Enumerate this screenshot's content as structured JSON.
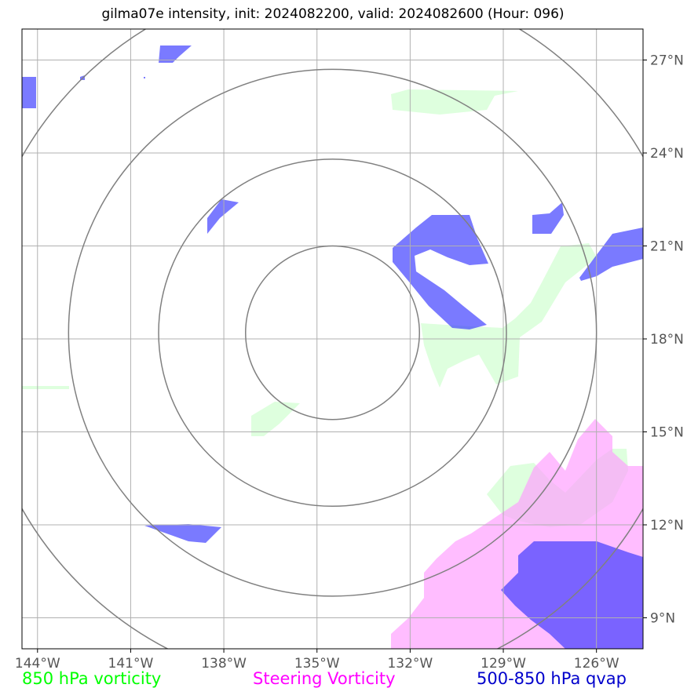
{
  "title": "gilma07e intensity, init: 2024082200, valid: 2024082600 (Hour: 096)",
  "map": {
    "lon_range": [
      -144.5,
      -124.5
    ],
    "lat_range": [
      8,
      28
    ],
    "lon_ticks": [
      {
        "value": -144,
        "label": "144°W"
      },
      {
        "value": -141,
        "label": "141°W"
      },
      {
        "value": -138,
        "label": "138°W"
      },
      {
        "value": -135,
        "label": "135°W"
      },
      {
        "value": -132,
        "label": "132°W"
      },
      {
        "value": -129,
        "label": "129°W"
      },
      {
        "value": -126,
        "label": "126°W"
      }
    ],
    "lat_ticks": [
      {
        "value": 27,
        "label": "27°N"
      },
      {
        "value": 24,
        "label": "24°N"
      },
      {
        "value": 21,
        "label": "21°N"
      },
      {
        "value": 18,
        "label": "18°N"
      },
      {
        "value": 15,
        "label": "15°N"
      },
      {
        "value": 12,
        "label": "12°N"
      },
      {
        "value": 9,
        "label": "9°N"
      }
    ],
    "range_rings": {
      "center": {
        "lon": -134.5,
        "lat": 18.2
      },
      "radii_deg": [
        2.8,
        5.6,
        8.5,
        11.5
      ]
    },
    "colors": {
      "vorticity_850": "#ccffcc",
      "steering_vorticity": "#ff99ff",
      "qvap": "#3333ff",
      "rings": "#808080",
      "grid": "#b0b0b0"
    }
  },
  "legend": {
    "vorticity": "850 hPa vorticity",
    "steering": "Steering Vorticity",
    "qvap": "500-850 hPa qvap"
  }
}
